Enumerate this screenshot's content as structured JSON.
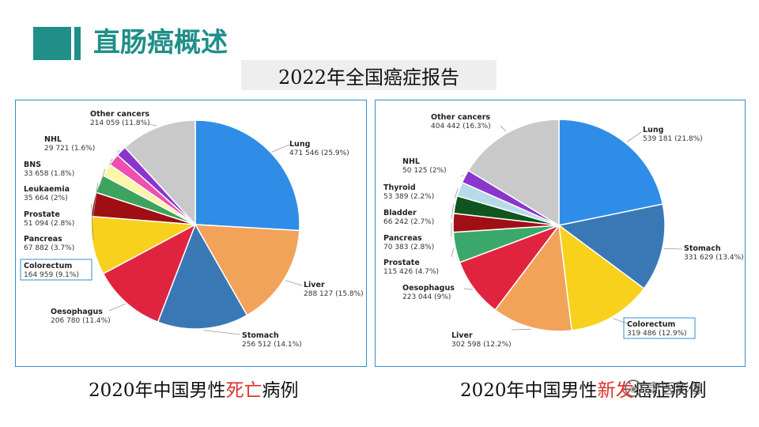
{
  "header": {
    "title": "直肠癌概述",
    "subtitle": "2022年全国癌症报告"
  },
  "colors": {
    "accent": "#1f8f88",
    "panel_border": "#2f8fd0",
    "highlight": "#e0302a"
  },
  "captions": {
    "left_prefix": "2020年中国男性",
    "left_highlight": "死亡",
    "left_suffix": "病例",
    "right_prefix": "2020年中国男性",
    "right_highlight": "新发",
    "right_suffix": "癌症病例"
  },
  "watermark": {
    "text": "肃医影像",
    "icon": "wechat-icon"
  },
  "chart_data": [
    {
      "type": "pie",
      "title": "",
      "highlight": "Colorectum",
      "slices": [
        {
          "name": "Lung",
          "value": 471546,
          "value_label": "471 546 (25.9%)",
          "pct": 25.9,
          "color": "#2f8de8"
        },
        {
          "name": "Liver",
          "value": 288127,
          "value_label": "288 127 (15.8%)",
          "pct": 15.8,
          "color": "#f2a35a"
        },
        {
          "name": "Stomach",
          "value": 256512,
          "value_label": "256 512 (14.1%)",
          "pct": 14.1,
          "color": "#3a78b5"
        },
        {
          "name": "Oesophagus",
          "value": 206780,
          "value_label": "206 780 (11.4%)",
          "pct": 11.4,
          "color": "#e0243f"
        },
        {
          "name": "Colorectum",
          "value": 164959,
          "value_label": "164 959 (9.1%)",
          "pct": 9.1,
          "color": "#f7d11c"
        },
        {
          "name": "Pancreas",
          "value": 67882,
          "value_label": "67 882 (3.7%)",
          "pct": 3.7,
          "color": "#9e0e12"
        },
        {
          "name": "Prostate",
          "value": 51094,
          "value_label": "51 094 (2.8%)",
          "pct": 2.8,
          "color": "#3da35e"
        },
        {
          "name": "Leukaemia",
          "value": 35664,
          "value_label": "35 664 (2%)",
          "pct": 2.0,
          "color": "#fbf6a8"
        },
        {
          "name": "BNS",
          "value": 33658,
          "value_label": "33 658 (1.8%)",
          "pct": 1.8,
          "color": "#ee4fb0"
        },
        {
          "name": "NHL",
          "value": 29721,
          "value_label": "29 721 (1.6%)",
          "pct": 1.6,
          "color": "#8a36cc"
        },
        {
          "name": "Other cancers",
          "value": 214059,
          "value_label": "214 059 (11.8%)",
          "pct": 11.8,
          "color": "#c9c9c9"
        }
      ]
    },
    {
      "type": "pie",
      "title": "",
      "highlight": "Colorectum",
      "slices": [
        {
          "name": "Lung",
          "value": 539181,
          "value_label": "539 181 (21.8%)",
          "pct": 21.8,
          "color": "#2f8de8"
        },
        {
          "name": "Stomach",
          "value": 331629,
          "value_label": "331 629 (13.4%)",
          "pct": 13.4,
          "color": "#3a78b5"
        },
        {
          "name": "Colorectum",
          "value": 319486,
          "value_label": "319 486 (12.9%)",
          "pct": 12.9,
          "color": "#f7d11c"
        },
        {
          "name": "Liver",
          "value": 302598,
          "value_label": "302 598 (12.2%)",
          "pct": 12.2,
          "color": "#f2a35a"
        },
        {
          "name": "Oesophagus",
          "value": 223044,
          "value_label": "223 044 (9%)",
          "pct": 9.0,
          "color": "#e0243f"
        },
        {
          "name": "Prostate",
          "value": 115426,
          "value_label": "115 426 (4.7%)",
          "pct": 4.7,
          "color": "#3aa86a"
        },
        {
          "name": "Pancreas",
          "value": 70383,
          "value_label": "70 383 (2.8%)",
          "pct": 2.8,
          "color": "#a10f16"
        },
        {
          "name": "Bladder",
          "value": 66242,
          "value_label": "66 242 (2.7%)",
          "pct": 2.7,
          "color": "#0f5520"
        },
        {
          "name": "Thyroid",
          "value": 53389,
          "value_label": "53 389 (2.2%)",
          "pct": 2.2,
          "color": "#b6dbe8"
        },
        {
          "name": "NHL",
          "value": 50125,
          "value_label": "50 125 (2%)",
          "pct": 2.0,
          "color": "#8a36cc"
        },
        {
          "name": "Other cancers",
          "value": 404442,
          "value_label": "404 442 (16.3%)",
          "pct": 16.3,
          "color": "#c9c9c9"
        }
      ]
    }
  ]
}
